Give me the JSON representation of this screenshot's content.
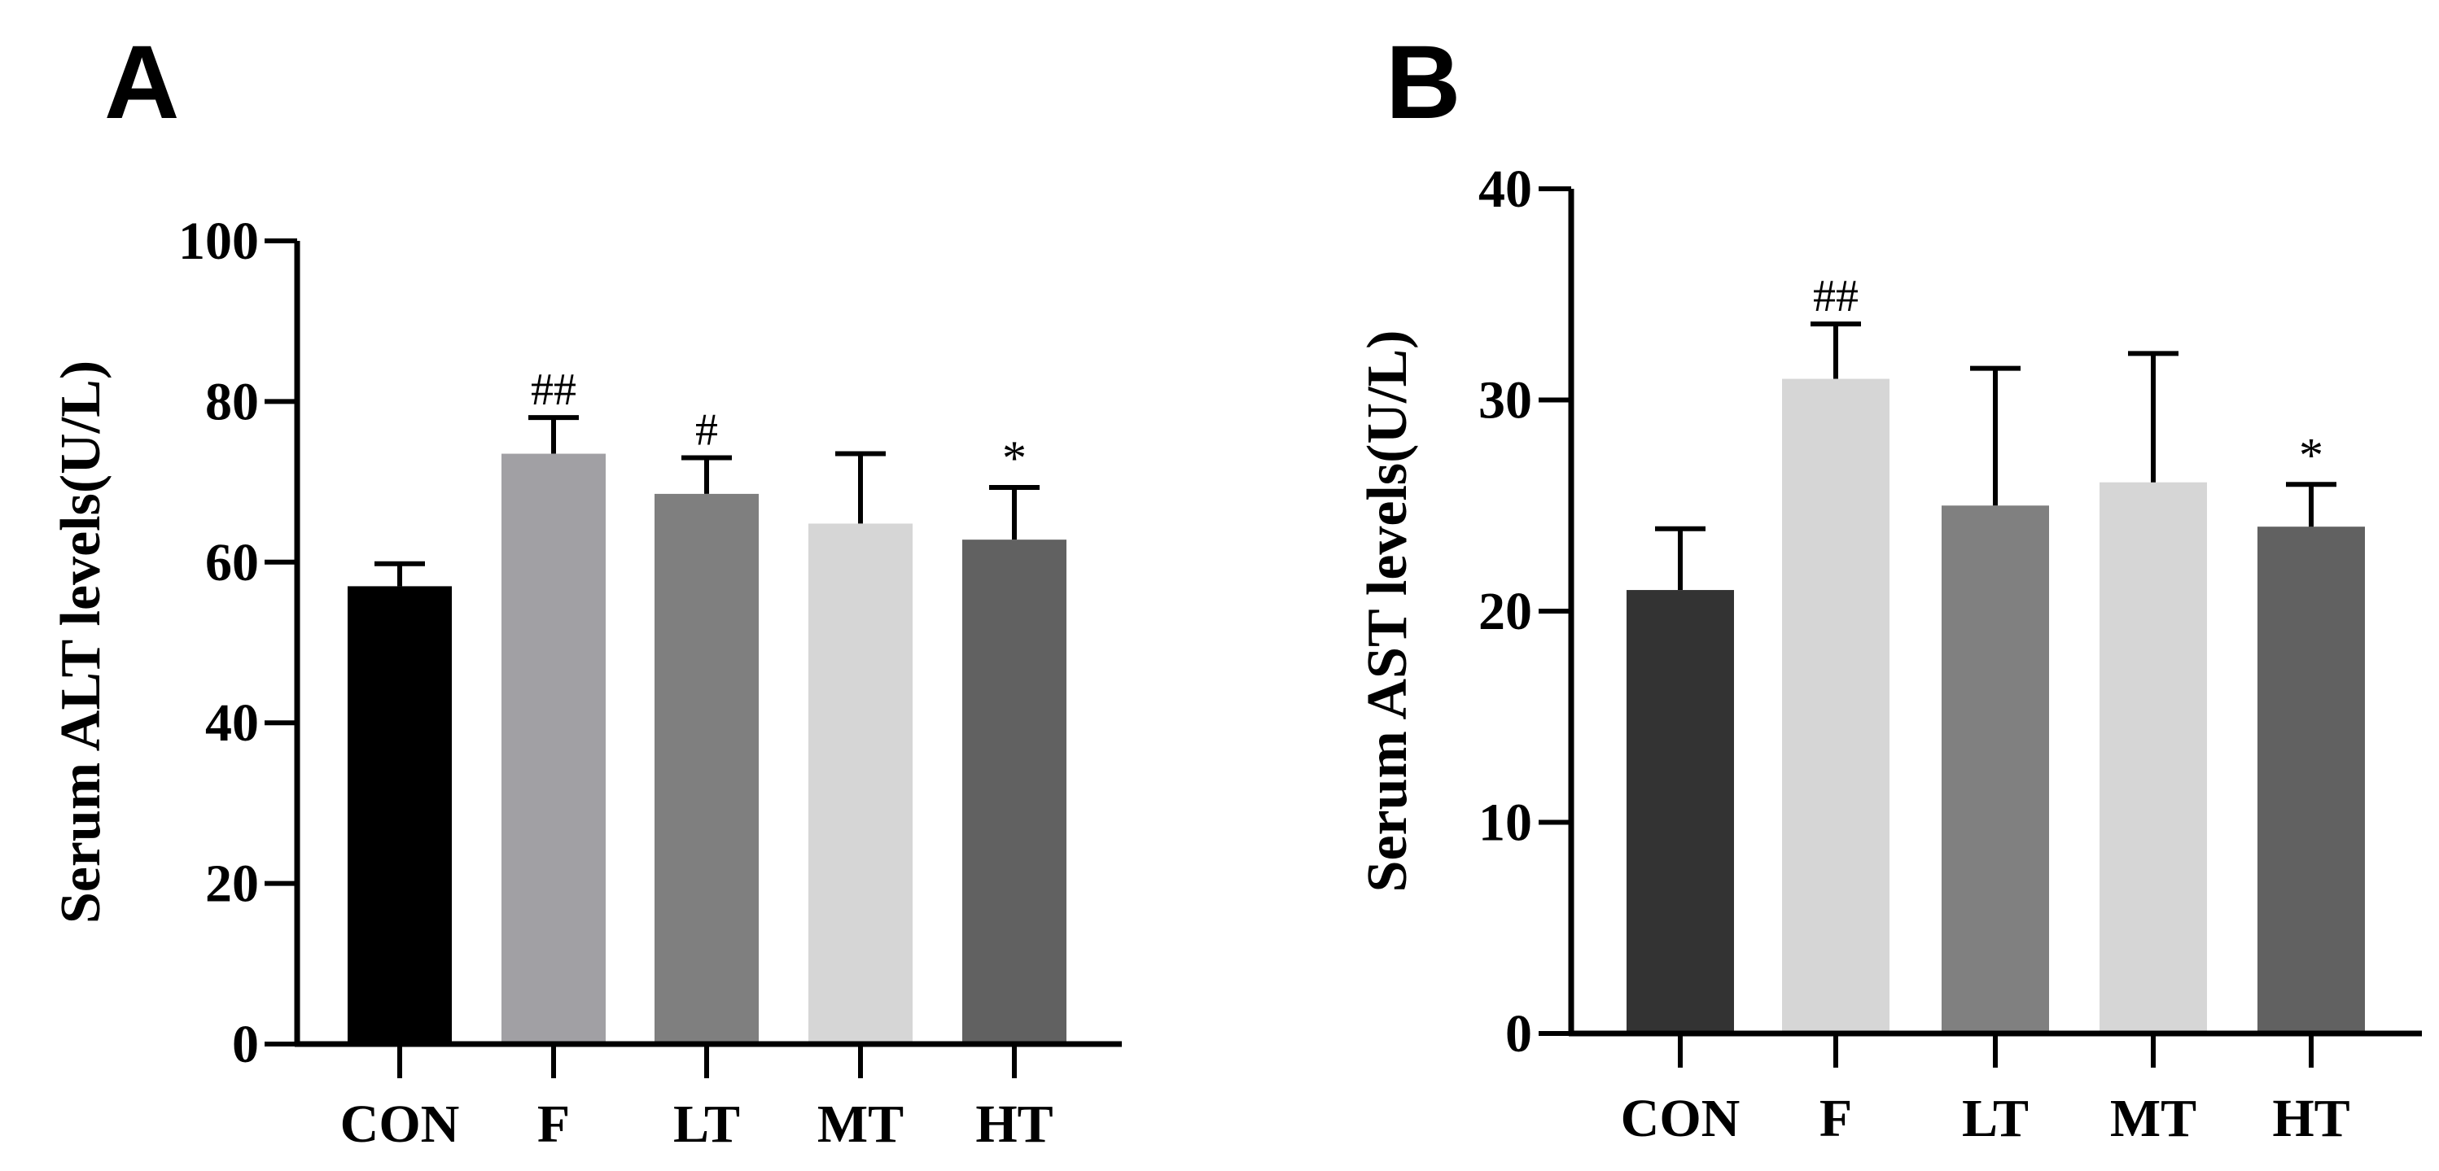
{
  "panels": [
    {
      "letter": "A"
    },
    {
      "letter": "B"
    }
  ],
  "chart_data": [
    {
      "type": "bar",
      "panel": "A",
      "title": "",
      "xlabel": "",
      "ylabel": "Serum ALT levels(U/L)",
      "categories": [
        "CON",
        "F",
        "LT",
        "MT",
        "HT"
      ],
      "values": [
        57,
        73.5,
        68.5,
        64.8,
        62.8
      ],
      "error": [
        2.8,
        4.5,
        4.5,
        8.7,
        6.5
      ],
      "annotations": [
        "",
        "##",
        "#",
        "",
        "*"
      ],
      "colors": [
        "#000000",
        "#a1a0a4",
        "#7f7f7f",
        "#d6d6d6",
        "#616161"
      ],
      "ylim": [
        0,
        100
      ],
      "yticks": [
        "0",
        "20",
        "40",
        "60",
        "80",
        "100"
      ],
      "grid": false
    },
    {
      "type": "bar",
      "panel": "B",
      "title": "",
      "xlabel": "",
      "ylabel": "Serum AST levels(U/L)",
      "categories": [
        "CON",
        "F",
        "LT",
        "MT",
        "HT"
      ],
      "values": [
        21,
        31,
        25,
        26.1,
        24
      ],
      "error": [
        2.9,
        2.6,
        6.5,
        6.1,
        2
      ],
      "annotations": [
        "",
        "##",
        "",
        "",
        "*"
      ],
      "colors": [
        "#333333",
        "#d6d6d6",
        "#808080",
        "#d6d6d6",
        "#616161"
      ],
      "ylim": [
        0,
        40
      ],
      "yticks": [
        "0",
        "10",
        "20",
        "30",
        "40"
      ],
      "grid": false
    }
  ]
}
